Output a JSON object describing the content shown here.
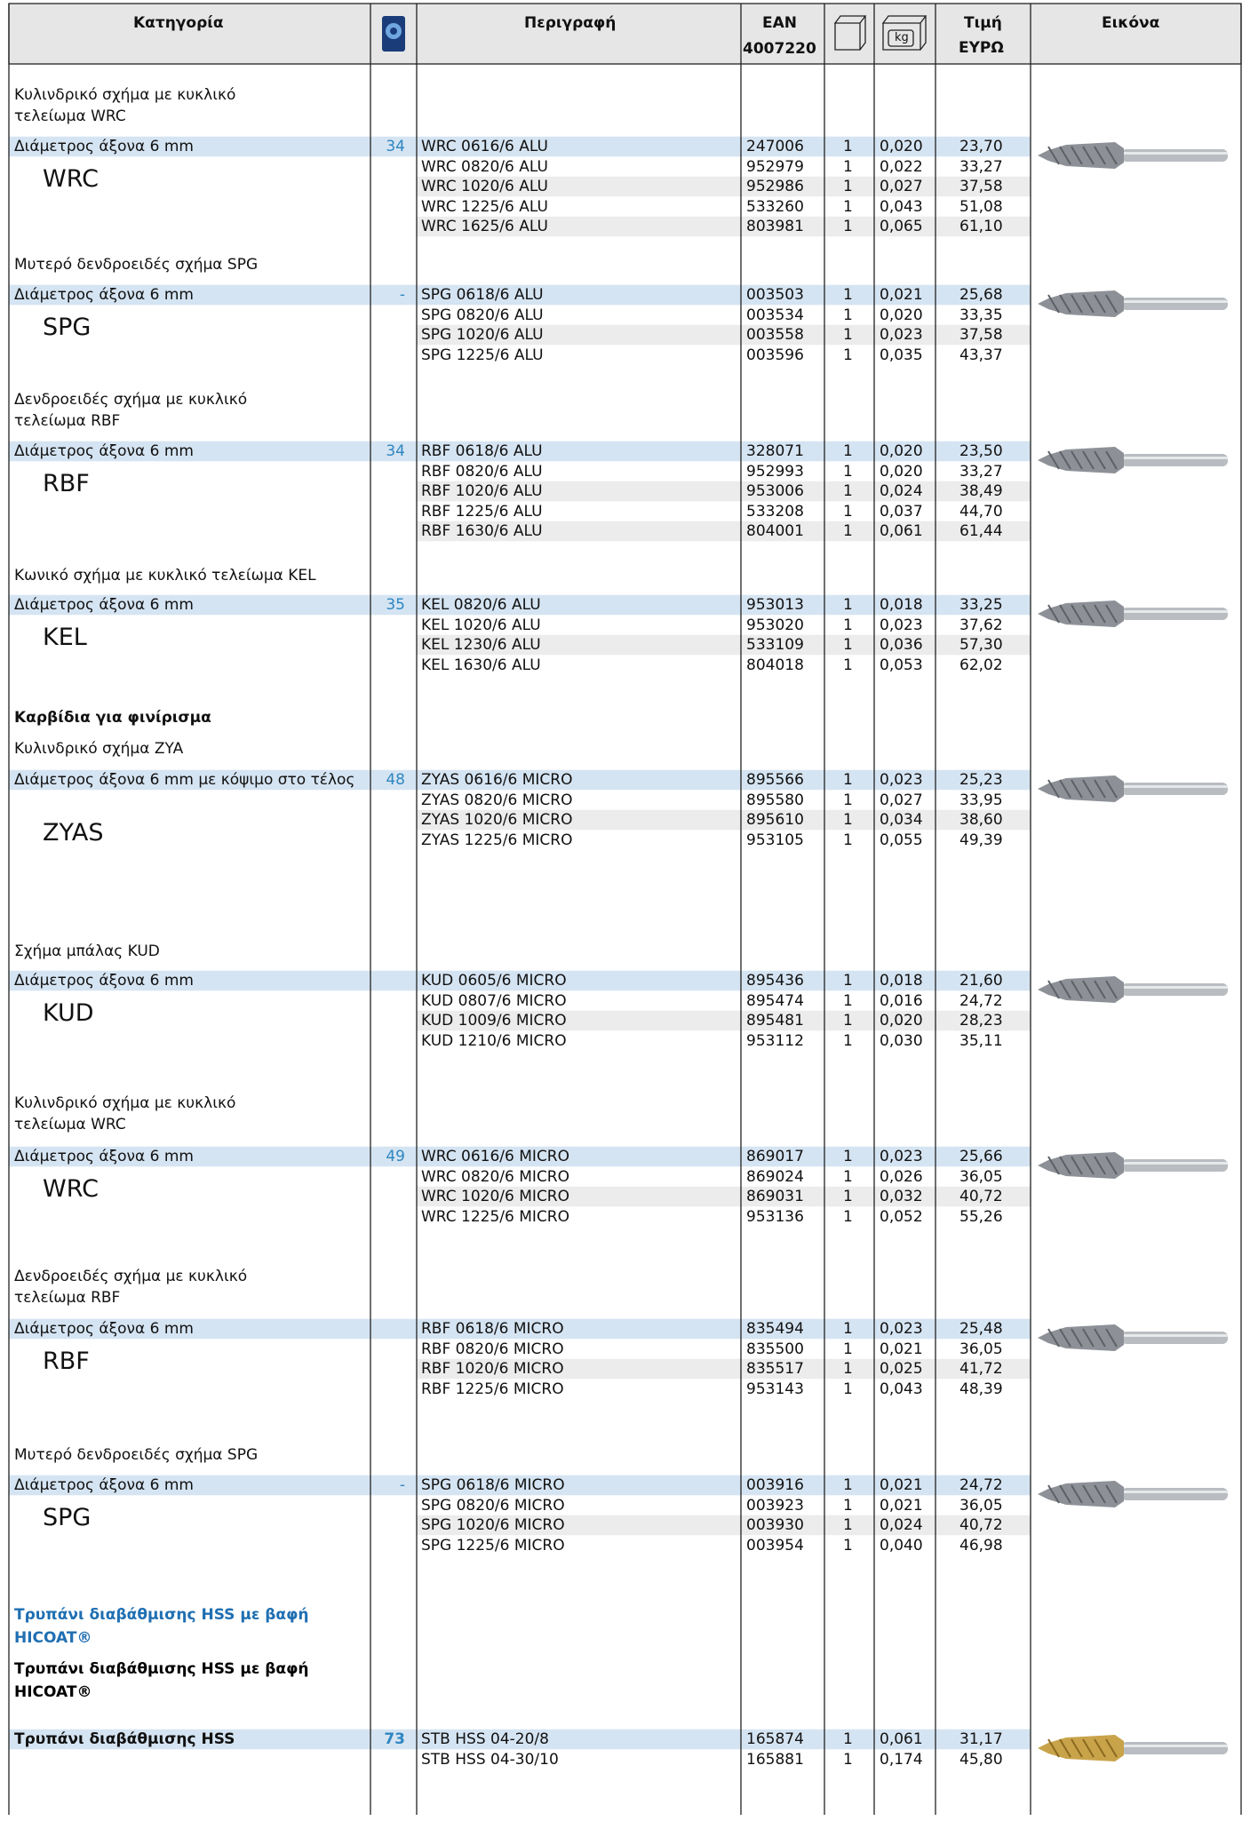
{
  "header": {
    "category": "Κατηγορία",
    "description": "Περιγραφή",
    "ean": "EAN",
    "ean_prefix": "4007220",
    "kg": "kg",
    "price": "Τιμή",
    "currency": "ΕΥΡΩ",
    "image": "Εικόνα"
  },
  "sections": [
    {
      "title": [
        "Κυλινδρικό σχήμα με κυκλικό",
        "τελείωμα WRC"
      ],
      "shaft": "Διάμετρος άξονα 6 mm",
      "code": "WRC",
      "page": "34",
      "rows": [
        [
          "WRC 0616/6 ALU",
          "247006",
          "1",
          "0,020",
          "23,70"
        ],
        [
          "WRC 0820/6 ALU",
          "952979",
          "1",
          "0,022",
          "33,27"
        ],
        [
          "WRC 1020/6 ALU",
          "952986",
          "1",
          "0,027",
          "37,58"
        ],
        [
          "WRC 1225/6 ALU",
          "533260",
          "1",
          "0,043",
          "51,08"
        ],
        [
          "WRC 1625/6 ALU",
          "803981",
          "1",
          "0,065",
          "61,10"
        ]
      ]
    },
    {
      "title": [
        "Μυτερό δενδροειδές σχήμα SPG"
      ],
      "shaft": "Διάμετρος άξονα 6 mm",
      "code": "SPG",
      "page": "-",
      "rows": [
        [
          "SPG 0618/6 ALU",
          "003503",
          "1",
          "0,021",
          "25,68"
        ],
        [
          "SPG 0820/6 ALU",
          "003534",
          "1",
          "0,020",
          "33,35"
        ],
        [
          "SPG 1020/6 ALU",
          "003558",
          "1",
          "0,023",
          "37,58"
        ],
        [
          "SPG 1225/6 ALU",
          "003596",
          "1",
          "0,035",
          "43,37"
        ]
      ]
    },
    {
      "title": [
        "Δενδροειδές σχήμα με κυκλικό",
        "τελείωμα RBF"
      ],
      "shaft": "Διάμετρος άξονα 6 mm",
      "code": "RBF",
      "page": "34",
      "rows": [
        [
          "RBF 0618/6 ALU",
          "328071",
          "1",
          "0,020",
          "23,50"
        ],
        [
          "RBF 0820/6 ALU",
          "952993",
          "1",
          "0,020",
          "33,27"
        ],
        [
          "RBF 1020/6 ALU",
          "953006",
          "1",
          "0,024",
          "38,49"
        ],
        [
          "RBF 1225/6 ALU",
          "533208",
          "1",
          "0,037",
          "44,70"
        ],
        [
          "RBF 1630/6 ALU",
          "804001",
          "1",
          "0,061",
          "61,44"
        ]
      ]
    },
    {
      "title": [
        "Κωνικό σχήμα με κυκλικό τελείωμα KEL"
      ],
      "shaft": "Διάμετρος άξονα 6 mm",
      "code": "KEL",
      "page": "35",
      "rows": [
        [
          "KEL 0820/6 ALU",
          "953013",
          "1",
          "0,018",
          "33,25"
        ],
        [
          "KEL 1020/6 ALU",
          "953020",
          "1",
          "0,023",
          "37,62"
        ],
        [
          "KEL 1230/6 ALU",
          "533109",
          "1",
          "0,036",
          "57,30"
        ],
        [
          "KEL 1630/6 ALU",
          "804018",
          "1",
          "0,053",
          "62,02"
        ]
      ]
    },
    {
      "heading": "Καρβίδια για φινίρισμα"
    },
    {
      "title": [
        "Κυλινδρικό σχήμα ZYA"
      ],
      "shaft": "Διάμετρος άξονα 6 mm με κόψιμο στο τέλος",
      "code": "ZYAS",
      "page": "48",
      "rows": [
        [
          "ZYAS 0616/6 MICRO",
          "895566",
          "1",
          "0,023",
          "25,23"
        ],
        [
          "ZYAS 0820/6 MICRO",
          "895580",
          "1",
          "0,027",
          "33,95"
        ],
        [
          "ZYAS 1020/6 MICRO",
          "895610",
          "1",
          "0,034",
          "38,60"
        ],
        [
          "ZYAS 1225/6 MICRO",
          "953105",
          "1",
          "0,055",
          "49,39"
        ]
      ]
    },
    {
      "title": [
        "Σχήμα μπάλας KUD"
      ],
      "shaft": "Διάμετρος άξονα 6 mm",
      "code": "KUD",
      "rows": [
        [
          "KUD 0605/6 MICRO",
          "895436",
          "1",
          "0,018",
          "21,60"
        ],
        [
          "KUD 0807/6 MICRO",
          "895474",
          "1",
          "0,016",
          "24,72"
        ],
        [
          "KUD 1009/6 MICRO",
          "895481",
          "1",
          "0,020",
          "28,23"
        ],
        [
          "KUD 1210/6 MICRO",
          "953112",
          "1",
          "0,030",
          "35,11"
        ]
      ]
    },
    {
      "title": [
        "Κυλινδρικό σχήμα με κυκλικό",
        "τελείωμα WRC"
      ],
      "shaft": "Διάμετρος άξονα 6 mm",
      "code": "WRC",
      "page": "49",
      "rows": [
        [
          "WRC 0616/6 MICRO",
          "869017",
          "1",
          "0,023",
          "25,66"
        ],
        [
          "WRC 0820/6 MICRO",
          "869024",
          "1",
          "0,026",
          "36,05"
        ],
        [
          "WRC 1020/6 MICRO",
          "869031",
          "1",
          "0,032",
          "40,72"
        ],
        [
          "WRC 1225/6 MICRO",
          "953136",
          "1",
          "0,052",
          "55,26"
        ]
      ]
    },
    {
      "title": [
        "Δενδροειδές σχήμα με κυκλικό",
        "τελείωμα RBF"
      ],
      "shaft": "Διάμετρος άξονα 6 mm",
      "code": "RBF",
      "rows": [
        [
          "RBF 0618/6 MICRO",
          "835494",
          "1",
          "0,023",
          "25,48"
        ],
        [
          "RBF 0820/6 MICRO",
          "835500",
          "1",
          "0,021",
          "36,05"
        ],
        [
          "RBF 1020/6 MICRO",
          "835517",
          "1",
          "0,025",
          "41,72"
        ],
        [
          "RBF 1225/6 MICRO",
          "953143",
          "1",
          "0,043",
          "48,39"
        ]
      ]
    },
    {
      "title": [
        "Μυτερό δενδροειδές σχήμα SPG"
      ],
      "shaft": "Διάμετρος άξονα 6 mm",
      "code": "SPG",
      "page": "-",
      "rows": [
        [
          "SPG 0618/6 MICRO",
          "003916",
          "1",
          "0,021",
          "24,72"
        ],
        [
          "SPG 0820/6 MICRO",
          "003923",
          "1",
          "0,021",
          "36,05"
        ],
        [
          "SPG 1020/6 MICRO",
          "003930",
          "1",
          "0,024",
          "40,72"
        ],
        [
          "SPG 1225/6 MICRO",
          "003954",
          "1",
          "0,040",
          "46,98"
        ]
      ]
    },
    {
      "heading": "Τρυπάνι διαβάθμισης HSS με βαφή HICOAT®",
      "color": "#1f6fb2"
    },
    {
      "heading": "Τρυπάνι διαβάθμισης HSS με βαφή HICOAT®",
      "color": "#000000"
    },
    {
      "shaft": "Τρυπάνι διαβάθμισης HSS",
      "bold": true,
      "page": "73",
      "rows": [
        [
          "STB HSS 04-20/8",
          "165874",
          "1",
          "0,061",
          "31,17"
        ],
        [
          "STB HSS 04-30/10",
          "165881",
          "1",
          "0,174",
          "45,80"
        ]
      ]
    }
  ]
}
